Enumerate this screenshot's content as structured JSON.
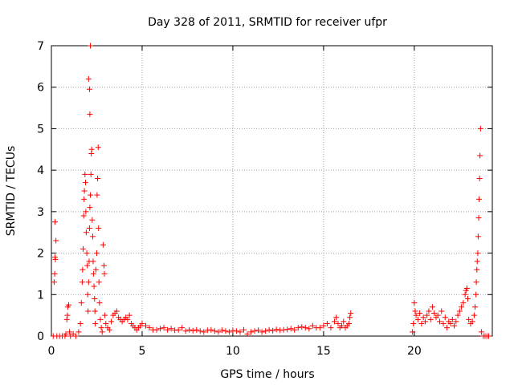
{
  "chart_data": {
    "type": "scatter",
    "title": "Day 328 of 2011, SRMTID for receiver ufpr",
    "xlabel": "GPS time / hours",
    "ylabel": "SRMTID / TECUs",
    "xlim": [
      0,
      24.3
    ],
    "ylim": [
      0,
      7
    ],
    "xticks": [
      0,
      5,
      10,
      15,
      20
    ],
    "yticks": [
      0,
      1,
      2,
      3,
      4,
      5,
      6,
      7
    ],
    "x_tick_labels": [
      "0",
      "5",
      "10",
      "15",
      "20"
    ],
    "y_tick_labels": [
      "0",
      "1",
      "2",
      "3",
      "4",
      "5",
      "6",
      "7"
    ],
    "grid": true,
    "marker": "+",
    "color": "#ff0000",
    "series": [
      {
        "points": [
          [
            0.1,
            0.0
          ],
          [
            0.15,
            1.3
          ],
          [
            0.18,
            1.5
          ],
          [
            0.2,
            1.9
          ],
          [
            0.22,
            1.85
          ],
          [
            0.25,
            2.3
          ],
          [
            0.2,
            2.75
          ],
          [
            0.3,
            0.0
          ],
          [
            0.45,
            0.0
          ],
          [
            0.6,
            0.0
          ],
          [
            0.75,
            0.0
          ],
          [
            0.8,
            0.05
          ],
          [
            0.85,
            0.4
          ],
          [
            0.88,
            0.5
          ],
          [
            0.9,
            0.7
          ],
          [
            0.95,
            0.75
          ],
          [
            1.0,
            0.1
          ],
          [
            1.05,
            0.0
          ],
          [
            1.2,
            0.05
          ],
          [
            1.35,
            0.0
          ],
          [
            1.5,
            0.1
          ],
          [
            1.6,
            0.3
          ],
          [
            1.65,
            0.8
          ],
          [
            1.7,
            1.3
          ],
          [
            1.72,
            1.6
          ],
          [
            1.75,
            2.1
          ],
          [
            1.78,
            2.9
          ],
          [
            1.8,
            3.3
          ],
          [
            1.82,
            3.5
          ],
          [
            1.85,
            3.9
          ],
          [
            1.88,
            3.7
          ],
          [
            1.9,
            3.0
          ],
          [
            1.92,
            2.5
          ],
          [
            1.95,
            2.0
          ],
          [
            1.98,
            1.7
          ],
          [
            2.0,
            1.0
          ],
          [
            2.02,
            0.6
          ],
          [
            2.05,
            1.3
          ],
          [
            2.08,
            1.8
          ],
          [
            2.1,
            2.6
          ],
          [
            2.12,
            3.1
          ],
          [
            2.15,
            3.4
          ],
          [
            2.18,
            3.9
          ],
          [
            2.2,
            4.4
          ],
          [
            2.22,
            4.5
          ],
          [
            2.05,
            6.2
          ],
          [
            2.1,
            5.95
          ],
          [
            2.12,
            5.35
          ],
          [
            2.15,
            7.0
          ],
          [
            2.25,
            2.8
          ],
          [
            2.28,
            2.4
          ],
          [
            2.3,
            1.8
          ],
          [
            2.32,
            1.5
          ],
          [
            2.35,
            1.2
          ],
          [
            2.38,
            0.9
          ],
          [
            2.4,
            0.6
          ],
          [
            2.42,
            0.3
          ],
          [
            2.45,
            1.6
          ],
          [
            2.5,
            2.0
          ],
          [
            2.52,
            3.4
          ],
          [
            2.55,
            3.8
          ],
          [
            2.58,
            4.55
          ],
          [
            2.6,
            2.6
          ],
          [
            2.62,
            1.3
          ],
          [
            2.65,
            0.8
          ],
          [
            2.7,
            0.4
          ],
          [
            2.75,
            0.2
          ],
          [
            2.8,
            0.1
          ],
          [
            2.85,
            2.2
          ],
          [
            2.9,
            1.7
          ],
          [
            2.92,
            1.5
          ],
          [
            2.95,
            0.5
          ],
          [
            3.0,
            0.3
          ],
          [
            3.1,
            0.2
          ],
          [
            3.2,
            0.15
          ],
          [
            3.3,
            0.35
          ],
          [
            3.4,
            0.5
          ],
          [
            3.5,
            0.55
          ],
          [
            3.6,
            0.6
          ],
          [
            3.7,
            0.45
          ],
          [
            3.8,
            0.4
          ],
          [
            3.9,
            0.35
          ],
          [
            4.0,
            0.4
          ],
          [
            4.1,
            0.45
          ],
          [
            4.2,
            0.4
          ],
          [
            4.3,
            0.5
          ],
          [
            4.4,
            0.3
          ],
          [
            4.5,
            0.25
          ],
          [
            4.6,
            0.2
          ],
          [
            4.7,
            0.15
          ],
          [
            4.8,
            0.2
          ],
          [
            4.9,
            0.25
          ],
          [
            5.0,
            0.3
          ],
          [
            5.2,
            0.25
          ],
          [
            5.4,
            0.2
          ],
          [
            5.6,
            0.15
          ],
          [
            5.8,
            0.15
          ],
          [
            6.0,
            0.18
          ],
          [
            6.2,
            0.2
          ],
          [
            6.4,
            0.15
          ],
          [
            6.6,
            0.18
          ],
          [
            6.8,
            0.14
          ],
          [
            7.0,
            0.15
          ],
          [
            7.2,
            0.2
          ],
          [
            7.4,
            0.12
          ],
          [
            7.6,
            0.15
          ],
          [
            7.8,
            0.13
          ],
          [
            8.0,
            0.15
          ],
          [
            8.2,
            0.12
          ],
          [
            8.4,
            0.1
          ],
          [
            8.6,
            0.14
          ],
          [
            8.8,
            0.15
          ],
          [
            9.0,
            0.12
          ],
          [
            9.2,
            0.1
          ],
          [
            9.4,
            0.14
          ],
          [
            9.6,
            0.12
          ],
          [
            9.8,
            0.1
          ],
          [
            10.0,
            0.13
          ],
          [
            10.2,
            0.12
          ],
          [
            10.4,
            0.1
          ],
          [
            10.6,
            0.15
          ],
          [
            10.8,
            0.05
          ],
          [
            11.0,
            0.1
          ],
          [
            11.2,
            0.12
          ],
          [
            11.4,
            0.14
          ],
          [
            11.6,
            0.1
          ],
          [
            11.8,
            0.12
          ],
          [
            12.0,
            0.15
          ],
          [
            12.2,
            0.13
          ],
          [
            12.4,
            0.16
          ],
          [
            12.6,
            0.14
          ],
          [
            12.8,
            0.15
          ],
          [
            13.0,
            0.16
          ],
          [
            13.2,
            0.18
          ],
          [
            13.4,
            0.15
          ],
          [
            13.6,
            0.2
          ],
          [
            13.8,
            0.22
          ],
          [
            14.0,
            0.2
          ],
          [
            14.2,
            0.18
          ],
          [
            14.4,
            0.25
          ],
          [
            14.6,
            0.2
          ],
          [
            14.8,
            0.2
          ],
          [
            15.0,
            0.25
          ],
          [
            15.2,
            0.3
          ],
          [
            15.4,
            0.2
          ],
          [
            15.6,
            0.35
          ],
          [
            15.7,
            0.45
          ],
          [
            15.8,
            0.3
          ],
          [
            15.9,
            0.2
          ],
          [
            16.0,
            0.25
          ],
          [
            16.1,
            0.35
          ],
          [
            16.2,
            0.2
          ],
          [
            16.3,
            0.25
          ],
          [
            16.4,
            0.3
          ],
          [
            16.45,
            0.45
          ],
          [
            16.5,
            0.55
          ],
          [
            19.9,
            0.1
          ],
          [
            19.95,
            0.3
          ],
          [
            20.0,
            0.8
          ],
          [
            20.05,
            0.6
          ],
          [
            20.1,
            0.5
          ],
          [
            20.2,
            0.4
          ],
          [
            20.3,
            0.55
          ],
          [
            20.4,
            0.3
          ],
          [
            20.5,
            0.45
          ],
          [
            20.6,
            0.35
          ],
          [
            20.7,
            0.5
          ],
          [
            20.8,
            0.6
          ],
          [
            20.9,
            0.4
          ],
          [
            21.0,
            0.7
          ],
          [
            21.1,
            0.55
          ],
          [
            21.2,
            0.45
          ],
          [
            21.3,
            0.5
          ],
          [
            21.4,
            0.35
          ],
          [
            21.5,
            0.6
          ],
          [
            21.6,
            0.3
          ],
          [
            21.7,
            0.45
          ],
          [
            21.8,
            0.2
          ],
          [
            21.9,
            0.35
          ],
          [
            22.0,
            0.3
          ],
          [
            22.1,
            0.4
          ],
          [
            22.2,
            0.25
          ],
          [
            22.3,
            0.35
          ],
          [
            22.4,
            0.5
          ],
          [
            22.5,
            0.6
          ],
          [
            22.6,
            0.7
          ],
          [
            22.7,
            0.8
          ],
          [
            22.8,
            1.0
          ],
          [
            22.85,
            1.1
          ],
          [
            22.9,
            1.15
          ],
          [
            22.95,
            0.9
          ],
          [
            23.0,
            0.4
          ],
          [
            23.1,
            0.3
          ],
          [
            23.2,
            0.35
          ],
          [
            23.3,
            0.5
          ],
          [
            23.35,
            0.7
          ],
          [
            23.4,
            1.0
          ],
          [
            23.42,
            1.3
          ],
          [
            23.45,
            1.6
          ],
          [
            23.47,
            1.8
          ],
          [
            23.5,
            2.0
          ],
          [
            23.52,
            2.4
          ],
          [
            23.55,
            2.85
          ],
          [
            23.57,
            3.3
          ],
          [
            23.6,
            3.8
          ],
          [
            23.62,
            4.35
          ],
          [
            23.65,
            5.0
          ],
          [
            23.7,
            0.1
          ],
          [
            23.8,
            0.0
          ],
          [
            23.9,
            0.0
          ],
          [
            24.0,
            0.0
          ],
          [
            24.1,
            0.0
          ]
        ]
      }
    ]
  }
}
